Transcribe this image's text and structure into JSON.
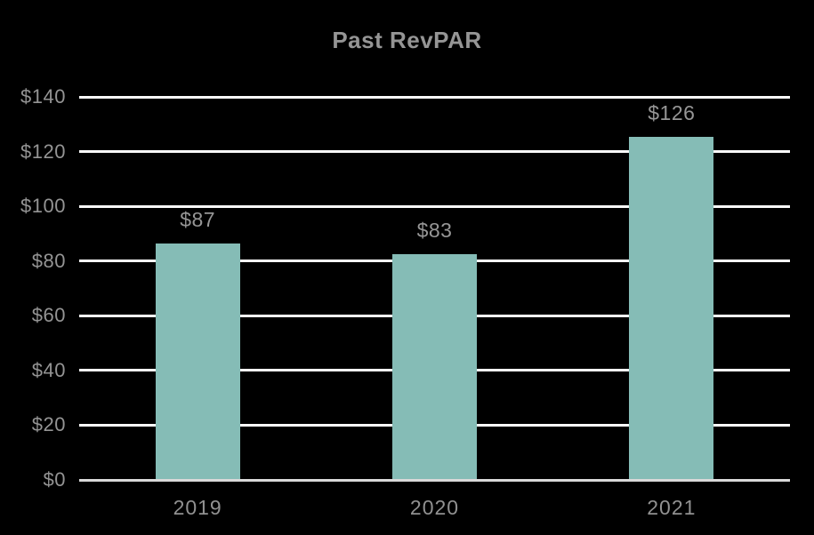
{
  "page": {
    "background_color": "#000000"
  },
  "chart": {
    "title": "Past RevPAR",
    "colors": {
      "bar": "#85BCB6",
      "title_text": "#959595",
      "axis_text": "#949494",
      "gridline": "#FBFBFB",
      "baseline": "#D9D9D9",
      "background": "#000000"
    }
  },
  "chart_data": {
    "type": "bar",
    "title": "Past RevPAR",
    "categories": [
      "2019",
      "2020",
      "2021"
    ],
    "values": [
      87,
      83,
      126
    ],
    "value_labels": [
      "$87",
      "$83",
      "$126"
    ],
    "xlabel": "",
    "ylabel": "",
    "ylim": [
      0,
      140
    ],
    "ytick_values": [
      0,
      20,
      40,
      60,
      80,
      100,
      120,
      140
    ],
    "ytick_labels": [
      "$0",
      "$20",
      "$40",
      "$60",
      "$80",
      "$100",
      "$120",
      "$140"
    ],
    "grid": "horizontal",
    "legend_position": "none",
    "bar_color": "#85BCB6",
    "background": "#000000"
  }
}
